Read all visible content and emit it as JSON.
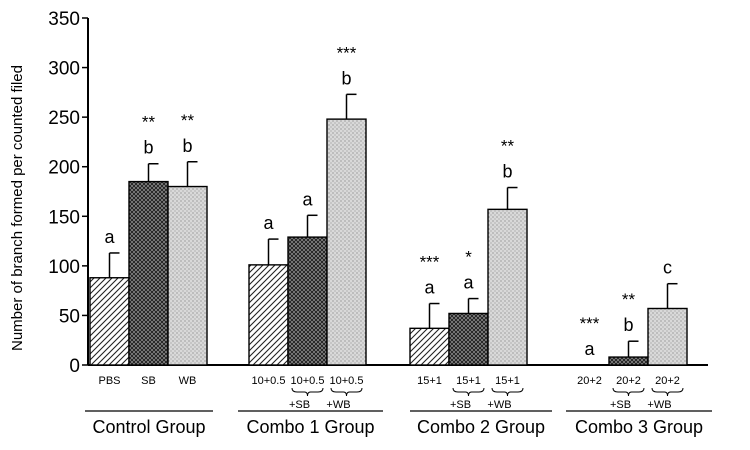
{
  "chart_data": {
    "type": "bar",
    "ylabel": "Number of branch formed per counted filed",
    "ylim": [
      0,
      350
    ],
    "yticks": [
      0,
      50,
      100,
      150,
      200,
      250,
      300,
      350
    ],
    "groups": [
      {
        "name": "Control Group",
        "bars": [
          {
            "label": "PBS",
            "sub": "",
            "value": 88,
            "err": 25,
            "letter": "a",
            "stars": "",
            "pattern": "diag"
          },
          {
            "label": "SB",
            "sub": "",
            "value": 185,
            "err": 18,
            "letter": "b",
            "stars": "**",
            "pattern": "dark"
          },
          {
            "label": "WB",
            "sub": "",
            "value": 180,
            "err": 25,
            "letter": "b",
            "stars": "**",
            "pattern": "light"
          }
        ]
      },
      {
        "name": "Combo 1 Group",
        "bars": [
          {
            "label": "10+0.5",
            "sub": "",
            "value": 101,
            "err": 26,
            "letter": "a",
            "stars": "",
            "pattern": "diag"
          },
          {
            "label": "10+0.5",
            "sub": "+SB",
            "value": 129,
            "err": 22,
            "letter": "a",
            "stars": "",
            "pattern": "dark"
          },
          {
            "label": "10+0.5",
            "sub": "+WB",
            "value": 248,
            "err": 25,
            "letter": "b",
            "stars": "***",
            "pattern": "light"
          }
        ]
      },
      {
        "name": "Combo 2 Group",
        "bars": [
          {
            "label": "15+1",
            "sub": "",
            "value": 37,
            "err": 25,
            "letter": "a",
            "stars": "***",
            "pattern": "diag"
          },
          {
            "label": "15+1",
            "sub": "+SB",
            "value": 52,
            "err": 15,
            "letter": "a",
            "stars": "*",
            "pattern": "dark"
          },
          {
            "label": "15+1",
            "sub": "+WB",
            "value": 157,
            "err": 22,
            "letter": "b",
            "stars": "**",
            "pattern": "light"
          }
        ]
      },
      {
        "name": "Combo 3 Group",
        "bars": [
          {
            "label": "20+2",
            "sub": "",
            "value": 0,
            "err": 0,
            "letter": "a",
            "stars": "***",
            "pattern": "diag"
          },
          {
            "label": "20+2",
            "sub": "+SB",
            "value": 8,
            "err": 16,
            "letter": "b",
            "stars": "**",
            "pattern": "dark"
          },
          {
            "label": "20+2",
            "sub": "+WB",
            "value": 57,
            "err": 25,
            "letter": "c",
            "stars": "",
            "pattern": "light"
          }
        ]
      }
    ]
  }
}
